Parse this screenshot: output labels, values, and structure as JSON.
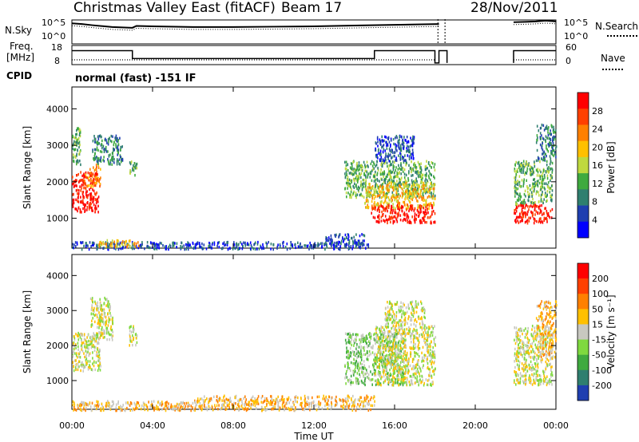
{
  "header": {
    "station": "Christmas Valley East (fitACF)",
    "beam": "Beam 17",
    "date": "28/Nov/2011"
  },
  "side_labels": {
    "nsky": "N.Sky",
    "nsky_ticks": [
      "10^5",
      "10^0"
    ],
    "nsearch": "N.Search",
    "freq": "Freq.",
    "freq_unit": "[MHz]",
    "freq_ticks": [
      "18",
      "8"
    ],
    "nave": "Nave",
    "nave_ticks": [
      "60",
      "0"
    ],
    "cpid": "CPID",
    "cpid_text": "normal (fast) -151 IF"
  },
  "colors": {
    "power_scale": [
      "#0000ff",
      "#1f3fb0",
      "#2f7f6f",
      "#3faa3f",
      "#bfd93f",
      "#ffc000",
      "#ff8000",
      "#ff4000",
      "#ff0000"
    ],
    "velocity_scale": [
      "#1f3fb0",
      "#2f7f6f",
      "#3faa3f",
      "#7fd93f",
      "#c8c8c0",
      "#ffc000",
      "#ff8000",
      "#ff4000",
      "#ff0000"
    ],
    "range_gate_accent": "#7f7fff"
  },
  "chart_data": [
    {
      "type": "line",
      "title": "N.Sky / N.Search",
      "x_range_hours": [
        0,
        24
      ],
      "series": [
        {
          "name": "N.Sky",
          "x": [
            0,
            0.5,
            1,
            2,
            3,
            3.2,
            4,
            6,
            8,
            10,
            12,
            14,
            16,
            18.2
          ],
          "y": [
            5.5,
            5.3,
            5.0,
            4.5,
            4.3,
            4.8,
            4.7,
            4.5,
            4.5,
            4.6,
            4.7,
            4.9,
            5.1,
            5.3
          ]
        },
        {
          "name": "N.Sky",
          "x": [
            21.9,
            22.5,
            23,
            23.5,
            24
          ],
          "y": [
            5.8,
            5.9,
            6.0,
            6.2,
            6.0
          ]
        }
      ]
    },
    {
      "type": "line",
      "title": "Freq. / Nave",
      "x_range_hours": [
        0,
        24
      ],
      "series": [
        {
          "name": "Freq.",
          "x": [
            0,
            3.0,
            3.0,
            15.0,
            15.0,
            18.0,
            18.0,
            18.2,
            18.2,
            18.6,
            18.6
          ],
          "y": [
            15.5,
            15.5,
            11.0,
            11.0,
            15.5,
            15.5,
            8.5,
            8.5,
            15.5,
            15.5,
            8.5
          ]
        },
        {
          "name": "Freq.",
          "x": [
            21.9,
            21.9,
            24
          ],
          "y": [
            8.5,
            15.5,
            15.5
          ]
        }
      ]
    },
    {
      "type": "heatmap",
      "ylabel": "Slant Range [km]",
      "legend_label": "Power [dB]",
      "legend_ticks": [
        "28",
        "24",
        "20",
        "16",
        "12",
        "8",
        "4"
      ],
      "x_range_hours": [
        0,
        24
      ],
      "ylim": [
        180,
        4600
      ],
      "yticks": [
        "4000",
        "3000",
        "2000",
        "1000"
      ],
      "blobs": [
        {
          "x0": 0.0,
          "x1": 1.3,
          "y0": 1200,
          "y1": 2300,
          "level": 8
        },
        {
          "x0": 0.6,
          "x1": 1.4,
          "y0": 1900,
          "y1": 2500,
          "level": 6
        },
        {
          "x0": 0.0,
          "x1": 0.4,
          "y0": 2500,
          "y1": 3500,
          "level": 3
        },
        {
          "x0": 1.0,
          "x1": 2.5,
          "y0": 2500,
          "y1": 3300,
          "level": 2
        },
        {
          "x0": 2.8,
          "x1": 3.2,
          "y0": 2200,
          "y1": 2600,
          "level": 3
        },
        {
          "x0": 0.0,
          "x1": 6.0,
          "y0": 180,
          "y1": 380,
          "level": 1
        },
        {
          "x0": 1.3,
          "x1": 3.3,
          "y0": 230,
          "y1": 430,
          "level": 5
        },
        {
          "x0": 6.0,
          "x1": 14.8,
          "y0": 180,
          "y1": 380,
          "level": 1
        },
        {
          "x0": 12.5,
          "x1": 14.5,
          "y0": 300,
          "y1": 600,
          "level": 1
        },
        {
          "x0": 13.5,
          "x1": 18.0,
          "y0": 1600,
          "y1": 2600,
          "level": 3
        },
        {
          "x0": 14.5,
          "x1": 18.0,
          "y0": 1300,
          "y1": 2000,
          "level": 5
        },
        {
          "x0": 14.8,
          "x1": 18.0,
          "y0": 900,
          "y1": 1400,
          "level": 8
        },
        {
          "x0": 15.0,
          "x1": 17.0,
          "y0": 2600,
          "y1": 3300,
          "level": 1
        },
        {
          "x0": 21.9,
          "x1": 23.8,
          "y0": 1400,
          "y1": 2600,
          "level": 3
        },
        {
          "x0": 21.9,
          "x1": 23.8,
          "y0": 900,
          "y1": 1400,
          "level": 8
        },
        {
          "x0": 23.0,
          "x1": 24.0,
          "y0": 2600,
          "y1": 3600,
          "level": 2
        }
      ]
    },
    {
      "type": "heatmap",
      "xlabel": "Time UT",
      "ylabel": "Slant Range [km]",
      "legend_label": "Velocity [m s⁻¹]",
      "legend_ticks": [
        "200",
        "100",
        "50",
        "15",
        "-15",
        "-50",
        "-100",
        "-200"
      ],
      "x_range_hours": [
        0,
        24
      ],
      "xticks": [
        "00:00",
        "04:00",
        "08:00",
        "12:00",
        "16:00",
        "20:00",
        "00:00"
      ],
      "ylim": [
        180,
        4600
      ],
      "yticks": [
        "4000",
        "3000",
        "2000",
        "1000"
      ],
      "blobs": [
        {
          "x0": 0.0,
          "x1": 1.4,
          "y0": 1300,
          "y1": 2400,
          "level": 4
        },
        {
          "x0": 0.9,
          "x1": 2.0,
          "y0": 2200,
          "y1": 3400,
          "level": 4
        },
        {
          "x0": 2.8,
          "x1": 3.2,
          "y0": 2000,
          "y1": 2600,
          "level": 4
        },
        {
          "x0": 0.0,
          "x1": 6.0,
          "y0": 180,
          "y1": 450,
          "level": 5
        },
        {
          "x0": 6.0,
          "x1": 15.0,
          "y0": 180,
          "y1": 600,
          "level": 5
        },
        {
          "x0": 13.5,
          "x1": 16.5,
          "y0": 900,
          "y1": 2400,
          "level": 3
        },
        {
          "x0": 15.0,
          "x1": 18.0,
          "y0": 900,
          "y1": 2600,
          "level": 4
        },
        {
          "x0": 15.5,
          "x1": 17.5,
          "y0": 2600,
          "y1": 3300,
          "level": 4
        },
        {
          "x0": 21.9,
          "x1": 23.8,
          "y0": 900,
          "y1": 2600,
          "level": 4
        },
        {
          "x0": 23.0,
          "x1": 24.0,
          "y0": 1700,
          "y1": 3300,
          "level": 5
        }
      ]
    }
  ]
}
